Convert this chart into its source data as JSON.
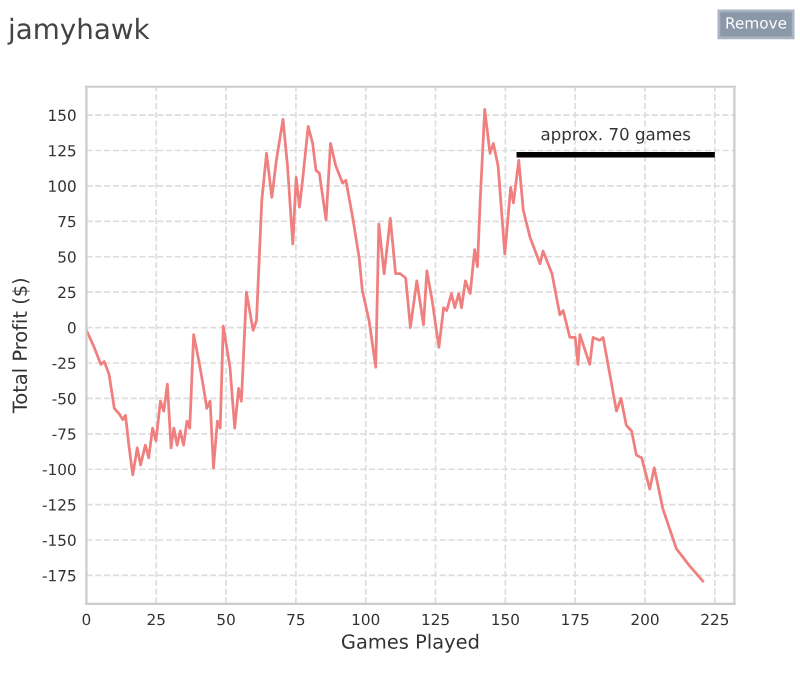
{
  "chart_data": {
    "type": "line",
    "title": "jamyhawk",
    "xlabel": "Games Played",
    "ylabel": "Total Profit ($)",
    "annotations": [
      "Remove",
      "approx. 70 games"
    ],
    "xlim": [
      0,
      232
    ],
    "ylim": [
      -195,
      170
    ],
    "xticks": [
      0,
      25,
      50,
      75,
      100,
      125,
      150,
      175,
      200,
      225
    ],
    "yticks": [
      -175,
      -150,
      -125,
      -100,
      -75,
      -50,
      -25,
      0,
      25,
      50,
      75,
      100,
      125,
      150
    ],
    "grid": true,
    "marker": "none",
    "line_style": "solid",
    "series": [
      {
        "color": "#f08080",
        "x": [
          0,
          2.8,
          5.2,
          6.4,
          8.1,
          10,
          11.8,
          13,
          14,
          15.2,
          16.6,
          18.2,
          19.4,
          21.1,
          22.3,
          23.7,
          24.9,
          26.5,
          27.7,
          29,
          30.3,
          31.3,
          32.5,
          33.6,
          34.8,
          36,
          37,
          38.4,
          40.3,
          42,
          43.1,
          44.3,
          45.5,
          46.9,
          47.9,
          49,
          51.4,
          53.1,
          54.5,
          55.5,
          57.3,
          59.7,
          60.9,
          62.8,
          64.5,
          66.4,
          68,
          70.4,
          72,
          73.9,
          75.1,
          76.3,
          77.5,
          79.4,
          81,
          82.2,
          83.4,
          85.8,
          87.4,
          89.3,
          91.7,
          92.9,
          95.3,
          97.6,
          98.8,
          101.2,
          103.6,
          104.7,
          106.6,
          108.8,
          110.7,
          112.4,
          114.3,
          116,
          118.3,
          120.7,
          121.9,
          123.8,
          126.2,
          127.9,
          129,
          130.7,
          131.9,
          133.3,
          134.3,
          135.7,
          137.4,
          139,
          140,
          141,
          142.6,
          144.5,
          145.7,
          147.4,
          149.8,
          151.9,
          152.9,
          154.8,
          156.4,
          158.8,
          162.4,
          163.5,
          166.7,
          169.5,
          170.7,
          173.1,
          175,
          176,
          176.7,
          180.2,
          181.4,
          183.8,
          185,
          189.8,
          191.4,
          193.3,
          195.2,
          196.9,
          198.8,
          201.7,
          203.3,
          206.4,
          211.2,
          215.9,
          220.7
        ],
        "values": [
          -2,
          -14,
          -26,
          -24,
          -33,
          -57,
          -61,
          -65,
          -62,
          -83,
          -104,
          -85,
          -97,
          -83,
          -92,
          -71,
          -80,
          -52,
          -59,
          -40,
          -85,
          -71,
          -83,
          -73,
          -83,
          -66,
          -71,
          -5,
          -24,
          -43,
          -57,
          -52,
          -99,
          -66,
          -71,
          1,
          -28,
          -71,
          -43,
          -52,
          25,
          -2,
          5,
          90,
          123,
          92,
          118,
          147,
          114,
          59,
          106,
          85,
          106,
          142,
          130,
          111,
          109,
          76,
          130,
          114,
          102,
          104,
          78,
          50,
          26,
          5,
          -28,
          73,
          38,
          77,
          38,
          38,
          35,
          0,
          33,
          2,
          40,
          19,
          -14,
          14,
          12,
          24,
          14,
          24,
          14,
          33,
          24,
          55,
          43,
          90,
          154,
          123,
          130,
          114,
          52,
          99,
          88,
          118,
          83,
          64,
          45,
          54,
          38,
          9,
          12,
          -7,
          -7,
          -26,
          -5,
          -26,
          -7,
          -9,
          -7,
          -59,
          -50,
          -69,
          -73,
          -90,
          -92,
          -114,
          -99,
          -128,
          -156,
          -168,
          -179
        ]
      },
      {
        "color": "#000000",
        "x": [
          155,
          224
        ],
        "values": [
          122,
          122
        ]
      }
    ]
  }
}
